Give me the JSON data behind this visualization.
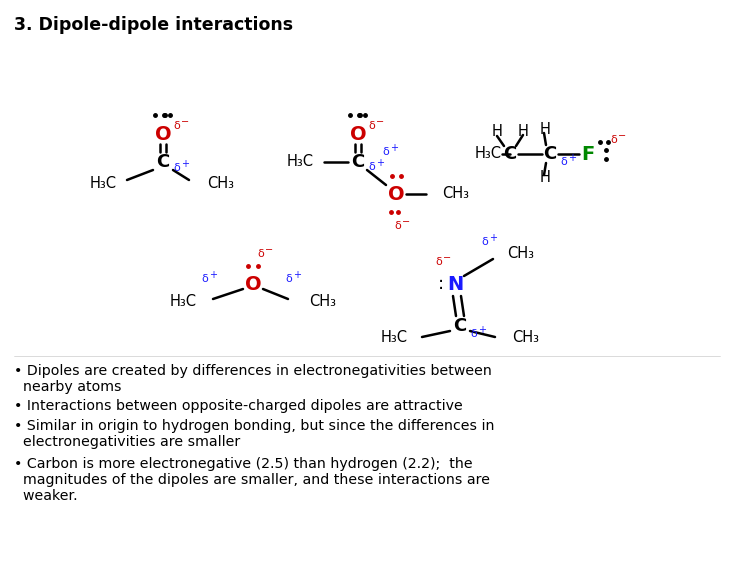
{
  "title": "3. Dipole-dipole interactions",
  "background_color": "#ffffff",
  "colors": {
    "black": "#000000",
    "red": "#cc0000",
    "blue": "#1a1aff",
    "green": "#008800"
  },
  "bullet_points": [
    [
      "• Dipoles are created by differences in electronegativities between",
      "  nearby atoms"
    ],
    [
      "• Interactions between opposite-charged dipoles are attractive"
    ],
    [
      "• Similar in origin to hydrogen bonding, but since the differences in",
      "  electronegativities are smaller"
    ],
    [
      "• Carbon is more electronegative (2.5) than hydrogen (2.2);  the",
      "  magnitudes of the dipoles are smaller, and these interactions are",
      "  weaker."
    ]
  ]
}
